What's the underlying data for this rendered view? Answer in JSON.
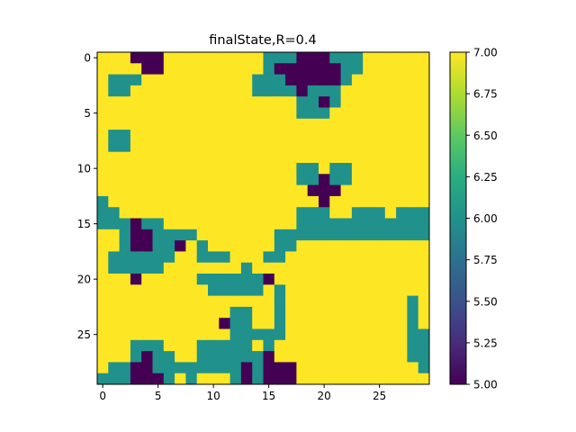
{
  "chart_data": {
    "type": "heatmap",
    "title": "finalState,R=0.4",
    "xlabel": "",
    "ylabel": "",
    "rows": 30,
    "cols": 30,
    "x_ticks": [
      0,
      5,
      10,
      15,
      20,
      25
    ],
    "y_ticks": [
      0,
      5,
      10,
      15,
      20,
      25
    ],
    "colorbar": {
      "min": 5.0,
      "max": 7.0,
      "ticks": [
        "5.00",
        "5.25",
        "5.50",
        "5.75",
        "6.00",
        "6.25",
        "6.50",
        "6.75",
        "7.00"
      ],
      "colormap": "viridis"
    },
    "colors": {
      "v5": "#440154",
      "v6": "#21918c",
      "v7": "#fde725"
    },
    "values": [
      "777555777777777666555666777777",
      "777755777777777655555566777777",
      "766677777777776665555567777777",
      "766777777777776666566677777777",
      "777777777777777777665677777777",
      "777777777777777777666777777777",
      "777777777777777777777777777777",
      "766777777777777777777777777777",
      "766777777777777777777777777777",
      "777777777777777777777777777777",
      "777777777777777777667667777777",
      "777777777777777777665667777777",
      "777777777777777777755577777777",
      "677777777777777777775777777777",
      "667777777777777777666776667666",
      "666566777777777777666666666666",
      "776556666777777766666666666666",
      "776556657677777766777777777777",
      "766666677666777667777777777777",
      "766666777777767777777777777777",
      "777577777666666577777777777777",
      "777777777766666767777777777777",
      "777777777777777767777777777767",
      "777777777777667767777777777767",
      "777777777775667767777777777767",
      "777777777777666667777777777766",
      "777666777666667677777777777766",
      "777656677666666577777777777766",
      "766556666666656555777777777776",
      "666555676777656555777777777777"
    ]
  }
}
